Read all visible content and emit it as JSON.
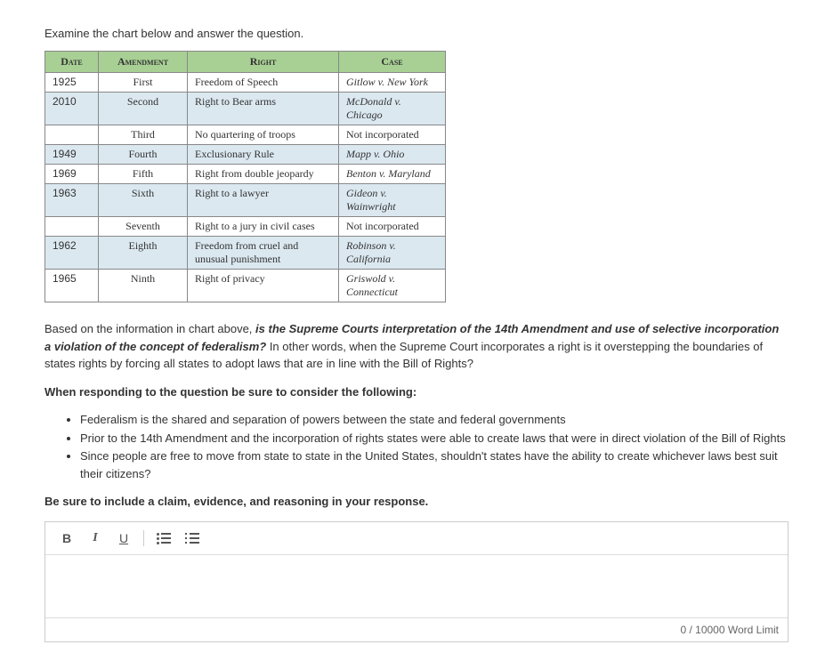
{
  "instruction": "Examine the chart below and answer the question.",
  "table": {
    "header_bg": "#a8cf94",
    "row_alt_bg": "#dbe8f0",
    "headers": {
      "date": "Date",
      "amendment": "Amendment",
      "right": "Right",
      "case": "Case"
    },
    "rows": [
      {
        "date": "1925",
        "amendment": "First",
        "right": "Freedom of Speech",
        "case": "Gitlow v. New York",
        "case_italic": true,
        "alt": false
      },
      {
        "date": "2010",
        "amendment": "Second",
        "right": "Right to Bear arms",
        "case": "McDonald v. Chicago",
        "case_italic": true,
        "alt": true
      },
      {
        "date": "",
        "amendment": "Third",
        "right": "No quartering of troops",
        "case": "Not incorporated",
        "case_italic": false,
        "alt": false
      },
      {
        "date": "1949",
        "amendment": "Fourth",
        "right": "Exclusionary Rule",
        "case": "Mapp v. Ohio",
        "case_italic": true,
        "alt": true
      },
      {
        "date": "1969",
        "amendment": "Fifth",
        "right": "Right from double jeopardy",
        "case": "Benton v. Maryland",
        "case_italic": true,
        "alt": false
      },
      {
        "date": "1963",
        "amendment": "Sixth",
        "right": "Right to a lawyer",
        "case": "Gideon v. Wainwright",
        "case_italic": true,
        "alt": true
      },
      {
        "date": "",
        "amendment": "Seventh",
        "right": "Right to a jury in civil cases",
        "case": "Not incorporated",
        "case_italic": false,
        "alt": false
      },
      {
        "date": "1962",
        "amendment": "Eighth",
        "right": "Freedom from cruel and unusual punishment",
        "case": "Robinson v. California",
        "case_italic": true,
        "alt": true
      },
      {
        "date": "1965",
        "amendment": "Ninth",
        "right": "Right of privacy",
        "case": "Griswold v. Connecticut",
        "case_italic": true,
        "alt": false
      }
    ]
  },
  "question": {
    "intro": "Based on the information in chart above, ",
    "emph": "is the Supreme Courts interpretation of the 14th Amendment and use of selective incorporation a violation of the concept of federalism?",
    "rest": "  In other words, when the Supreme Court incorporates a right is it overstepping the boundaries of states rights by forcing all states to adopt laws that are in line with the Bill of Rights?"
  },
  "consider_heading": "When responding to the question be sure to consider the following:",
  "considerations": [
    "Federalism is the shared and separation of powers between the state and federal governments",
    "Prior to the 14th Amendment and the incorporation of rights states were able to create laws that were in direct violation of the Bill of Rights",
    "Since people are free to move from state to state in the United States, shouldn't states have the ability to create whichever laws best suit their citizens?"
  ],
  "closing": "Be sure to include a claim, evidence, and reasoning in your response.",
  "toolbar": {
    "bold": "B",
    "italic": "I",
    "underline": "U"
  },
  "word_limit": "0 / 10000 Word Limit"
}
